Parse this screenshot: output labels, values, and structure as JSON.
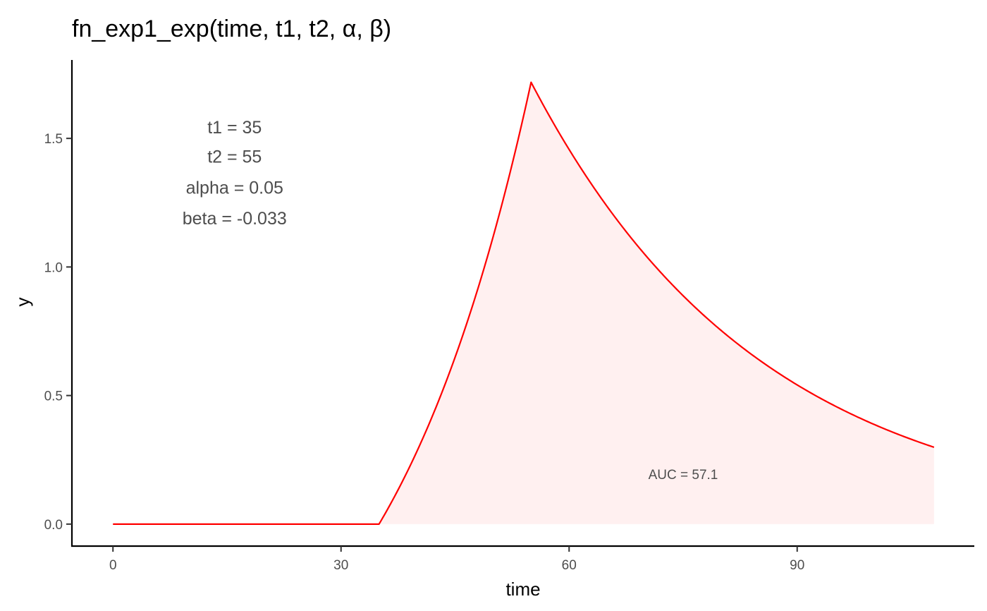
{
  "chart_data": {
    "type": "line",
    "title": "fn_exp1_exp(time, t1, t2, α, β)",
    "xlabel": "time",
    "ylabel": "y",
    "xlim": [
      -5.4,
      113.3
    ],
    "ylim": [
      -0.0855,
      1.805
    ],
    "x_ticks": [
      0,
      30,
      60,
      90
    ],
    "x_tick_labels": [
      "0",
      "30",
      "60",
      "90"
    ],
    "y_ticks": [
      0.0,
      0.5,
      1.0,
      1.5
    ],
    "y_tick_labels": [
      "0.0",
      "0.5",
      "1.0",
      "1.5"
    ],
    "grid": false,
    "parameters": {
      "t1": 35,
      "t2": 55,
      "alpha": 0.05,
      "beta": -0.033,
      "x_max": 108
    },
    "parameter_labels": [
      "t1 = 35",
      "t2 = 55",
      "alpha = 0.05",
      "beta = -0.033"
    ],
    "parameter_labels_pos": {
      "x": 16,
      "y": [
        1.545,
        1.43,
        1.31,
        1.19
      ]
    },
    "auc_label": "AUC = 57.1",
    "auc_label_pos": {
      "x": 75,
      "y": 0.195
    },
    "series": [
      {
        "line_color": "#ff0000",
        "fill_color": "#fff0f0"
      }
    ]
  }
}
